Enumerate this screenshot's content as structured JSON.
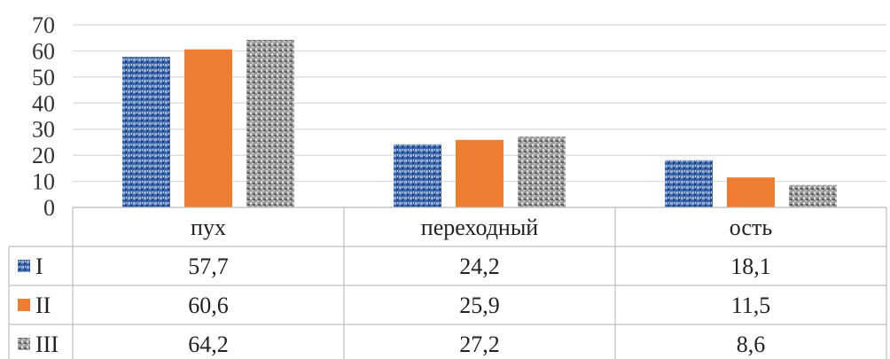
{
  "chart_data": {
    "type": "bar",
    "categories": [
      "пух",
      "переходный",
      "ость"
    ],
    "series": [
      {
        "name": "I",
        "values": [
          57.7,
          24.2,
          18.1
        ],
        "value_labels": [
          "57,7",
          "24,2",
          "18,1"
        ],
        "color": "#2f5597",
        "pattern": "blue-texture"
      },
      {
        "name": "II",
        "values": [
          60.6,
          25.9,
          11.5
        ],
        "value_labels": [
          "60,6",
          "25,9",
          "11,5"
        ],
        "color": "#ed7d31",
        "pattern": "solid"
      },
      {
        "name": "III",
        "values": [
          64.2,
          27.2,
          8.6
        ],
        "value_labels": [
          "64,2",
          "27,2",
          "8,6"
        ],
        "color": "#8c8c8c",
        "pattern": "gray-texture"
      }
    ],
    "ylim": [
      0,
      70
    ],
    "yticks": [
      "0",
      "10",
      "20",
      "30",
      "40",
      "50",
      "60",
      "70"
    ],
    "grid": true,
    "legend": "data-table"
  }
}
